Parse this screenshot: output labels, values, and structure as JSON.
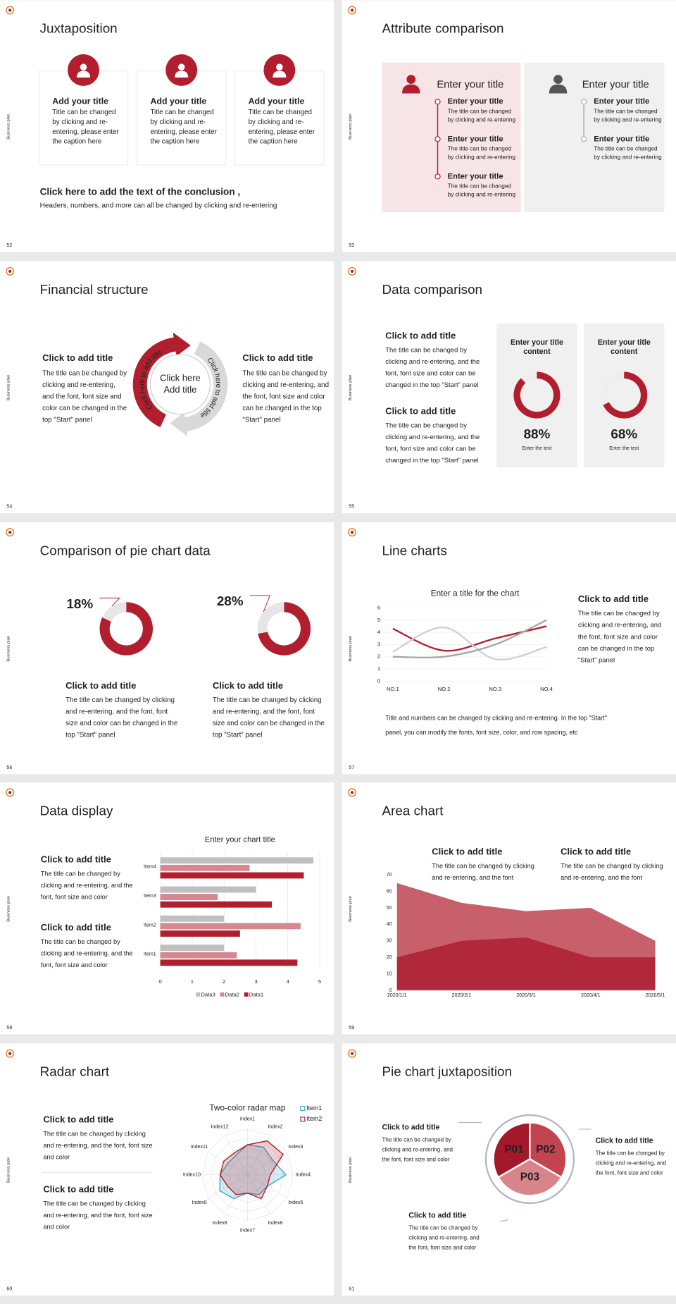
{
  "slides": [
    {
      "number": "52",
      "side_label": "Business plan",
      "title": "Juxtaposition",
      "cards": [
        {
          "title": "Add your title",
          "text": [
            "Title can be changed",
            "by clicking and re-",
            "entering, please enter",
            "the caption here"
          ]
        },
        {
          "title": "Add your title",
          "text": [
            "Title can be changed",
            "by clicking and re-",
            "entering, please enter",
            "the caption here"
          ]
        },
        {
          "title": "Add your title",
          "text": [
            "Title can be changed",
            "by clicking and re-",
            "entering, please enter",
            "the caption here"
          ]
        }
      ],
      "conclusion": {
        "title": "Click here to add the text of the conclusion ,",
        "text": "Headers, numbers, and more can all be changed by clicking and re-entering"
      }
    },
    {
      "number": "53",
      "side_label": "Business plan",
      "title": "Attribute comparison",
      "panels": [
        {
          "title": "Enter your title",
          "items": [
            {
              "title": "Enter your title",
              "text": [
                "The title can be changed",
                "by clicking and re-entering"
              ]
            },
            {
              "title": "Enter your title",
              "text": [
                "The title can be changed",
                "by clicking and re-entering"
              ]
            },
            {
              "title": "Enter your title",
              "text": [
                "The title can be changed",
                "by clicking and re-entering"
              ]
            }
          ]
        },
        {
          "title": "Enter your title",
          "items": [
            {
              "title": "Enter your title",
              "text": [
                "The title can be changed",
                "by clicking and re-entering"
              ]
            },
            {
              "title": "Enter your title",
              "text": [
                "The title can be changed",
                "by clicking and re-entering"
              ]
            }
          ]
        }
      ]
    },
    {
      "number": "54",
      "side_label": "Business plan",
      "title": "Financial structure",
      "blocks": [
        {
          "title": "Click to add title",
          "text": [
            "The title can be changed by",
            "clicking and re-entering,",
            "and the font, font size and",
            "color can be changed in the",
            "top \"Start\" panel"
          ]
        },
        {
          "title": "Click to add title",
          "text": [
            "The title can be changed by",
            "clicking and re-entering, and",
            "the font, font size and color",
            "can be changed in the top",
            "\"Start\" panel"
          ]
        }
      ],
      "cycle": {
        "center": [
          "Click here",
          "Add title"
        ],
        "arc_left": "Click here to add title",
        "arc_right": "Click here to add title"
      }
    },
    {
      "number": "55",
      "side_label": "Business plan",
      "title": "Data comparison",
      "blocks": [
        {
          "title": "Click to add title",
          "text": [
            "The title can be changed by",
            "clicking and re-entering, and the",
            "font, font size and color can be",
            "changed in the top \"Start\" panel"
          ]
        },
        {
          "title": "Click to add title",
          "text": [
            "The title can be changed by",
            "clicking and re-entering, and the",
            "font, font size and color can be",
            "changed in the top \"Start\" panel"
          ]
        }
      ],
      "chart": {
        "type": "donut",
        "titles": [
          [
            "Enter your title",
            "content"
          ],
          [
            "Enter your title",
            "content"
          ]
        ],
        "values": [
          88,
          68
        ],
        "value_labels": [
          "88%",
          "68%"
        ],
        "captions": [
          "Enter the text",
          "Enter the text"
        ],
        "color": "#b11e2d",
        "track_color": "#eeeeee"
      }
    },
    {
      "number": "56",
      "side_label": "Business plan",
      "title": "Comparison of pie chart data",
      "chart": {
        "type": "donut",
        "values": [
          18,
          28
        ],
        "value_labels": [
          "18%",
          "28%"
        ],
        "color": "#e6e6e6",
        "rest_color": "#b11e2d"
      },
      "blocks": [
        {
          "title": "Click to add title",
          "text": [
            "The title can be changed by clicking",
            "and re-entering, and the font, font",
            "size and color can be changed in the",
            "top \"Start\" panel"
          ]
        },
        {
          "title": "Click to add title",
          "text": [
            "The title can be changed by clicking",
            "and re-entering, and the font, font",
            "size and color can be changed in the",
            "top \"Start\" panel"
          ]
        }
      ]
    },
    {
      "number": "57",
      "side_label": "Business plan",
      "title": "Line charts",
      "chart": {
        "type": "line",
        "title": "Enter a title for the chart",
        "categories": [
          "NO.1",
          "NO.2",
          "NO.3",
          "NO.4"
        ],
        "series": [
          {
            "color": "#b11e2d",
            "values": [
              4.3,
              2.5,
              3.5,
              4.5
            ]
          },
          {
            "color": "#d0d0d0",
            "values": [
              2.4,
              4.4,
              1.8,
              2.8
            ]
          },
          {
            "color": "#a6a6a6",
            "values": [
              2,
              2,
              3,
              5
            ]
          }
        ],
        "ylim": [
          0,
          6
        ],
        "yticks": [
          0,
          1,
          2,
          3,
          4,
          5,
          6
        ],
        "grid": true
      },
      "block": {
        "title": "Click to add title",
        "text": [
          "The title can be changed by",
          "clicking and re-entering, and",
          "the font, font size and color",
          "can be changed in the top",
          "\"Start\" panel"
        ]
      },
      "footer": [
        "Title and numbers can be changed by clicking and re-entering. In the top \"Start\"",
        "panel, you can modify the fonts, font size, color, and row spacing, etc"
      ]
    },
    {
      "number": "58",
      "side_label": "Business plan",
      "title": "Data display",
      "blocks": [
        {
          "title": "Click to add title",
          "text": [
            "The title can be changed by",
            "clicking and re-entering, and the",
            "font, font size and color"
          ]
        },
        {
          "title": "Click to add title",
          "text": [
            "The title can be changed by",
            "clicking and re-entering, and the",
            "font, font size and color"
          ]
        }
      ],
      "chart": {
        "type": "bar",
        "orientation": "horizontal",
        "title": "Enter your chart title",
        "categories": [
          "Item1",
          "Item2",
          "Item3",
          "Item4"
        ],
        "series": [
          {
            "name": "Data1",
            "color": "#b11e2d",
            "values": [
              4.3,
              2.5,
              3.5,
              4.5
            ]
          },
          {
            "name": "Data2",
            "color": "#d68890",
            "values": [
              2.4,
              4.4,
              1.8,
              2.8
            ]
          },
          {
            "name": "Data3",
            "color": "#bfbfbf",
            "values": [
              2,
              2,
              3,
              4.8
            ]
          }
        ],
        "xlim": [
          0,
          5
        ],
        "xticks": [
          0,
          1,
          2,
          3,
          4,
          5
        ],
        "grid": true
      }
    },
    {
      "number": "59",
      "side_label": "Business plan",
      "title": "Area chart",
      "blocks": [
        {
          "title": "Click to add title",
          "text": [
            "The title can be changed by clicking",
            "and re-entering, and the font"
          ]
        },
        {
          "title": "Click to add title",
          "text": [
            "The title can be changed by clicking",
            "and re-entering, and the font"
          ]
        }
      ],
      "chart": {
        "type": "area",
        "x": [
          "2020/1/1",
          "2020/2/1",
          "2020/3/1",
          "2020/4/1",
          "2020/5/1"
        ],
        "series": [
          {
            "color": "#c8606b",
            "values": [
              65,
              53,
              48,
              50,
              30
            ]
          },
          {
            "color": "#b0283a",
            "values": [
              20,
              30,
              32,
              20,
              20
            ]
          }
        ],
        "ylim": [
          0,
          70
        ],
        "yticks": [
          0,
          10,
          20,
          30,
          40,
          50,
          60,
          70
        ]
      }
    },
    {
      "number": "60",
      "side_label": "Business plan",
      "title": "Radar chart",
      "blocks": [
        {
          "title": "Click to add title",
          "text": [
            "The title can be changed by clicking",
            "and re-entering, and the font, font size",
            "and color"
          ]
        },
        {
          "title": "Click to add title",
          "text": [
            "The title can be changed by clicking",
            "and re-entering, and the font, font size",
            "and color"
          ]
        }
      ],
      "chart": {
        "type": "radar",
        "title": "Two-color radar map",
        "categories": [
          "Index1",
          "Index2",
          "Index3",
          "Index4",
          "Index5",
          "Index6",
          "Index7",
          "Index8",
          "Index9",
          "Index10",
          "Index11",
          "Index12"
        ],
        "series": [
          {
            "name": "Item1",
            "color": "#3fa9c5",
            "values": [
              3.3,
              3.5,
              3.2,
              4.2,
              2.5,
              2.5,
              2,
              3,
              3.5,
              3,
              2.5,
              2.5
            ]
          },
          {
            "name": "Item2",
            "color": "#b11e2d",
            "values": [
              3.3,
              4.3,
              4.5,
              2.5,
              2.5,
              3,
              2,
              2.5,
              2.5,
              3,
              3,
              2.8
            ]
          }
        ],
        "rlim": [
          0,
          5
        ],
        "rticks": [
          1,
          2,
          3,
          4,
          5
        ]
      }
    },
    {
      "number": "61",
      "side_label": "Business plan",
      "title": "Pie chart juxtaposition",
      "pie": [
        "P01",
        "P02",
        "P03"
      ],
      "blocks": [
        {
          "title": "Click to add title",
          "text": [
            "The title can be changed by",
            "clicking and re-entering, and",
            "the font, font size and color"
          ]
        },
        {
          "title": "Click to add title",
          "text": [
            "The title can be changed by",
            "clicking and re-entering, and",
            "the font, font size and color"
          ]
        },
        {
          "title": "Click to add title",
          "text": [
            "The title can be changed by",
            "clicking and re-entering, and",
            "the font, font size and color"
          ]
        }
      ]
    }
  ]
}
